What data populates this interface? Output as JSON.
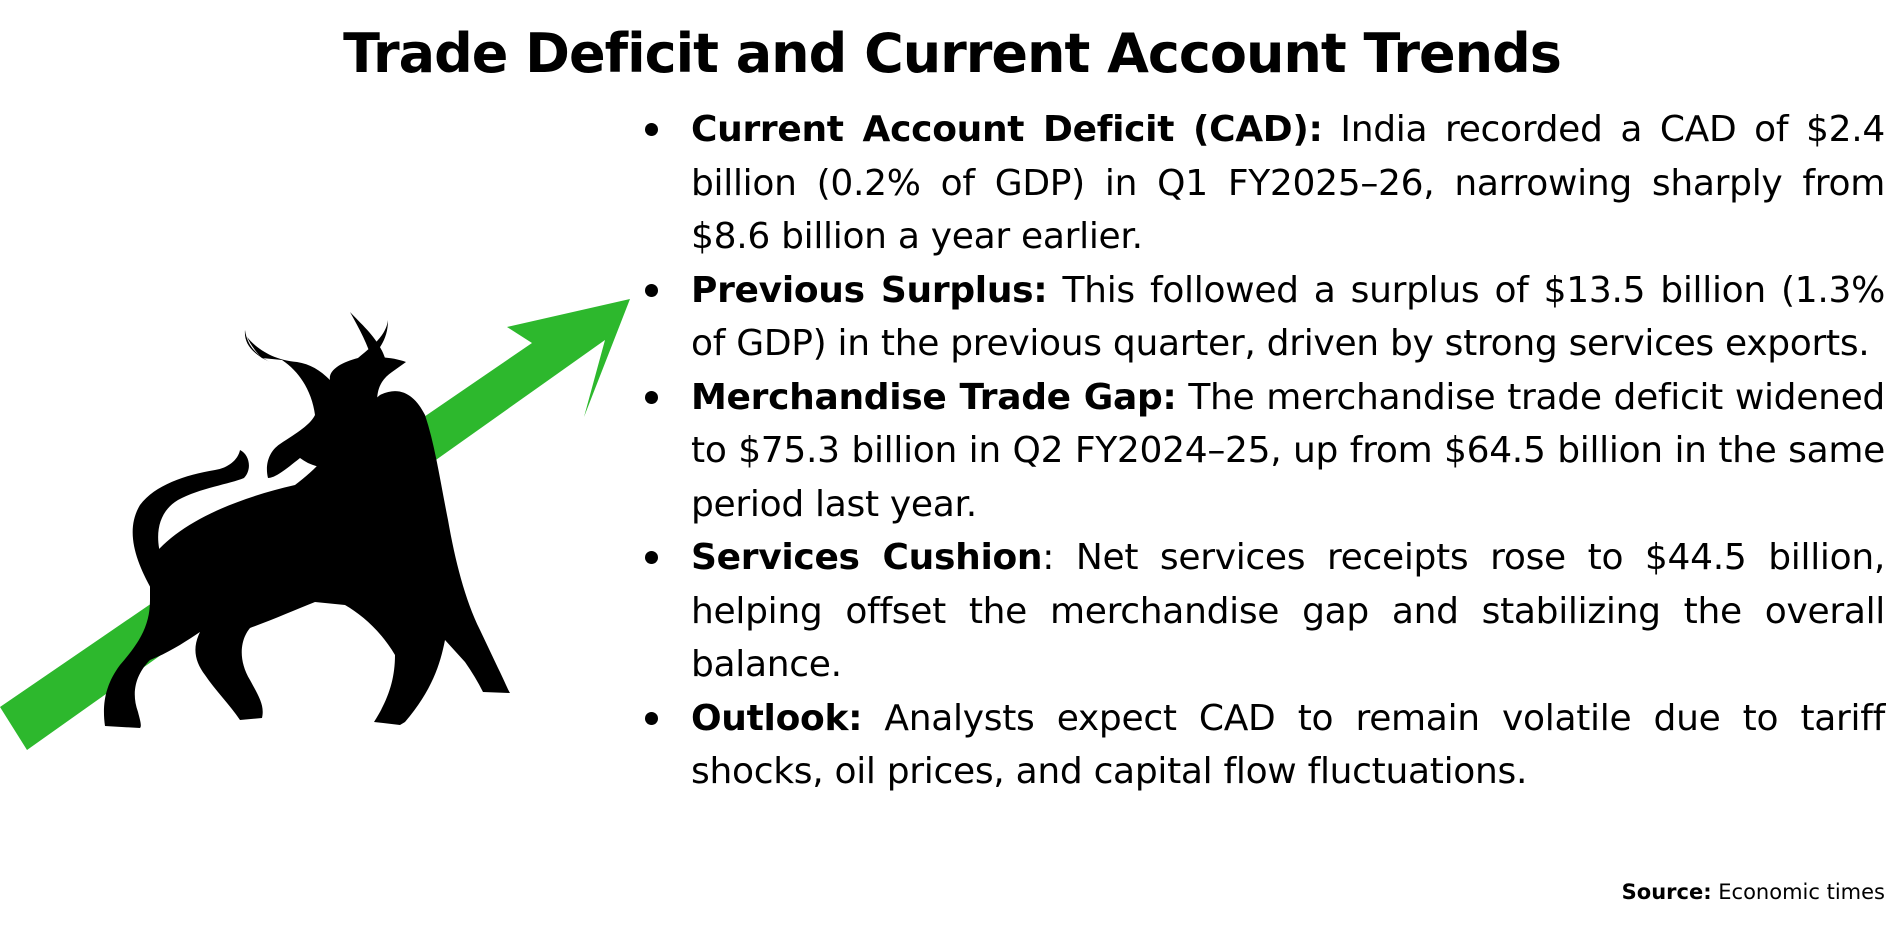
{
  "title": "Trade Deficit and Current Account Trends",
  "colors": {
    "arrow": "#2db82d",
    "bull": "#000000",
    "text": "#000000",
    "background": "#ffffff"
  },
  "illustration": {
    "icons": [
      "green-upward-arrow-icon",
      "bull-icon"
    ]
  },
  "bullets": [
    {
      "term": "Current Account Deficit (CAD):",
      "text": " India recorded a CAD of $2.4 billion (0.2% of GDP) in Q1 FY2025–26, narrowing sharply from $8.6 billion a year earlier."
    },
    {
      "term": "Previous Surplus:",
      "text": " This followed a surplus of $13.5 billion (1.3% of GDP) in the previous quarter, driven by strong services exports."
    },
    {
      "term": "Merchandise Trade Gap:",
      "text": " The merchandise trade deficit widened to $75.3 billion in Q2 FY2024–25, up from $64.5 billion in the same period last year."
    },
    {
      "term": "Services Cushion",
      "text": ": Net services receipts rose to $44.5 billion, helping offset the merchandise gap and stabilizing the overall balance."
    },
    {
      "term": "Outlook:",
      "text": " Analysts expect CAD to remain volatile due to tariff shocks, oil prices, and capital flow fluctuations."
    }
  ],
  "source": {
    "label": "Source:",
    "text": " Economic times"
  }
}
